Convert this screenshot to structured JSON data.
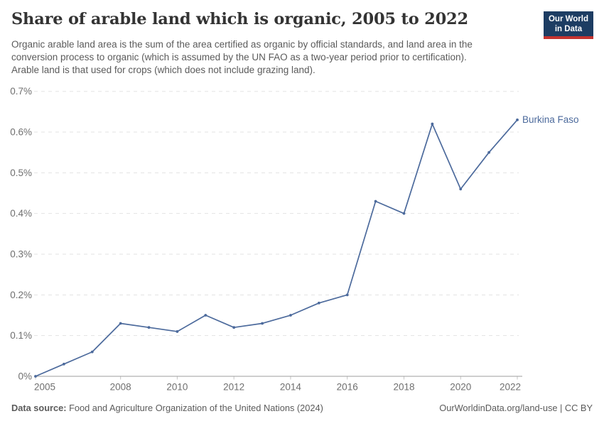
{
  "header": {
    "title": "Share of arable land which is organic, 2005 to 2022",
    "subtitle_lines": [
      "Organic arable land area is the sum of the area certified as organic by official standards, and land area in the",
      "conversion process to organic (which is assumed by the UN FAO as a two-year period prior to certification).",
      "Arable land is that used for crops (which does not include grazing land)."
    ],
    "logo": {
      "line1": "Our World",
      "line2": "in Data",
      "bg_color": "#1d3d63",
      "stripe_color": "#c5332f"
    }
  },
  "chart_data": {
    "type": "line",
    "title": "Share of arable land which is organic, 2005 to 2022",
    "xlabel": "",
    "ylabel": "",
    "xlim": [
      2005,
      2022
    ],
    "ylim": [
      0,
      0.7
    ],
    "grid": "horizontal-dashed",
    "x_ticks": [
      2005,
      2008,
      2010,
      2012,
      2014,
      2016,
      2018,
      2020,
      2022
    ],
    "y_ticks": [
      0,
      0.1,
      0.2,
      0.3,
      0.4,
      0.5,
      0.6,
      0.7
    ],
    "y_tick_labels": [
      "0%",
      "0.1%",
      "0.2%",
      "0.3%",
      "0.4%",
      "0.5%",
      "0.6%",
      "0.7%"
    ],
    "series": [
      {
        "name": "Burkina Faso",
        "color": "#4C6A9C",
        "x": [
          2005,
          2006,
          2007,
          2008,
          2009,
          2010,
          2011,
          2012,
          2013,
          2014,
          2015,
          2016,
          2017,
          2018,
          2019,
          2020,
          2021,
          2022
        ],
        "values": [
          0,
          0.03,
          0.06,
          0.13,
          0.12,
          0.11,
          0.15,
          0.12,
          0.13,
          0.15,
          0.18,
          0.2,
          0.43,
          0.4,
          0.62,
          0.46,
          0.55,
          0.63
        ]
      }
    ],
    "end_label": "Burkina Faso",
    "axis_colors": {
      "gridline": "#e3e3e3",
      "baseline": "#9e9e9e",
      "tick": "#c4c4c4"
    }
  },
  "footer": {
    "datasource_label": "Data source:",
    "datasource_text": " Food and Agriculture Organization of the United Nations (2024)",
    "right_text": "OurWorldinData.org/land-use | CC BY"
  }
}
